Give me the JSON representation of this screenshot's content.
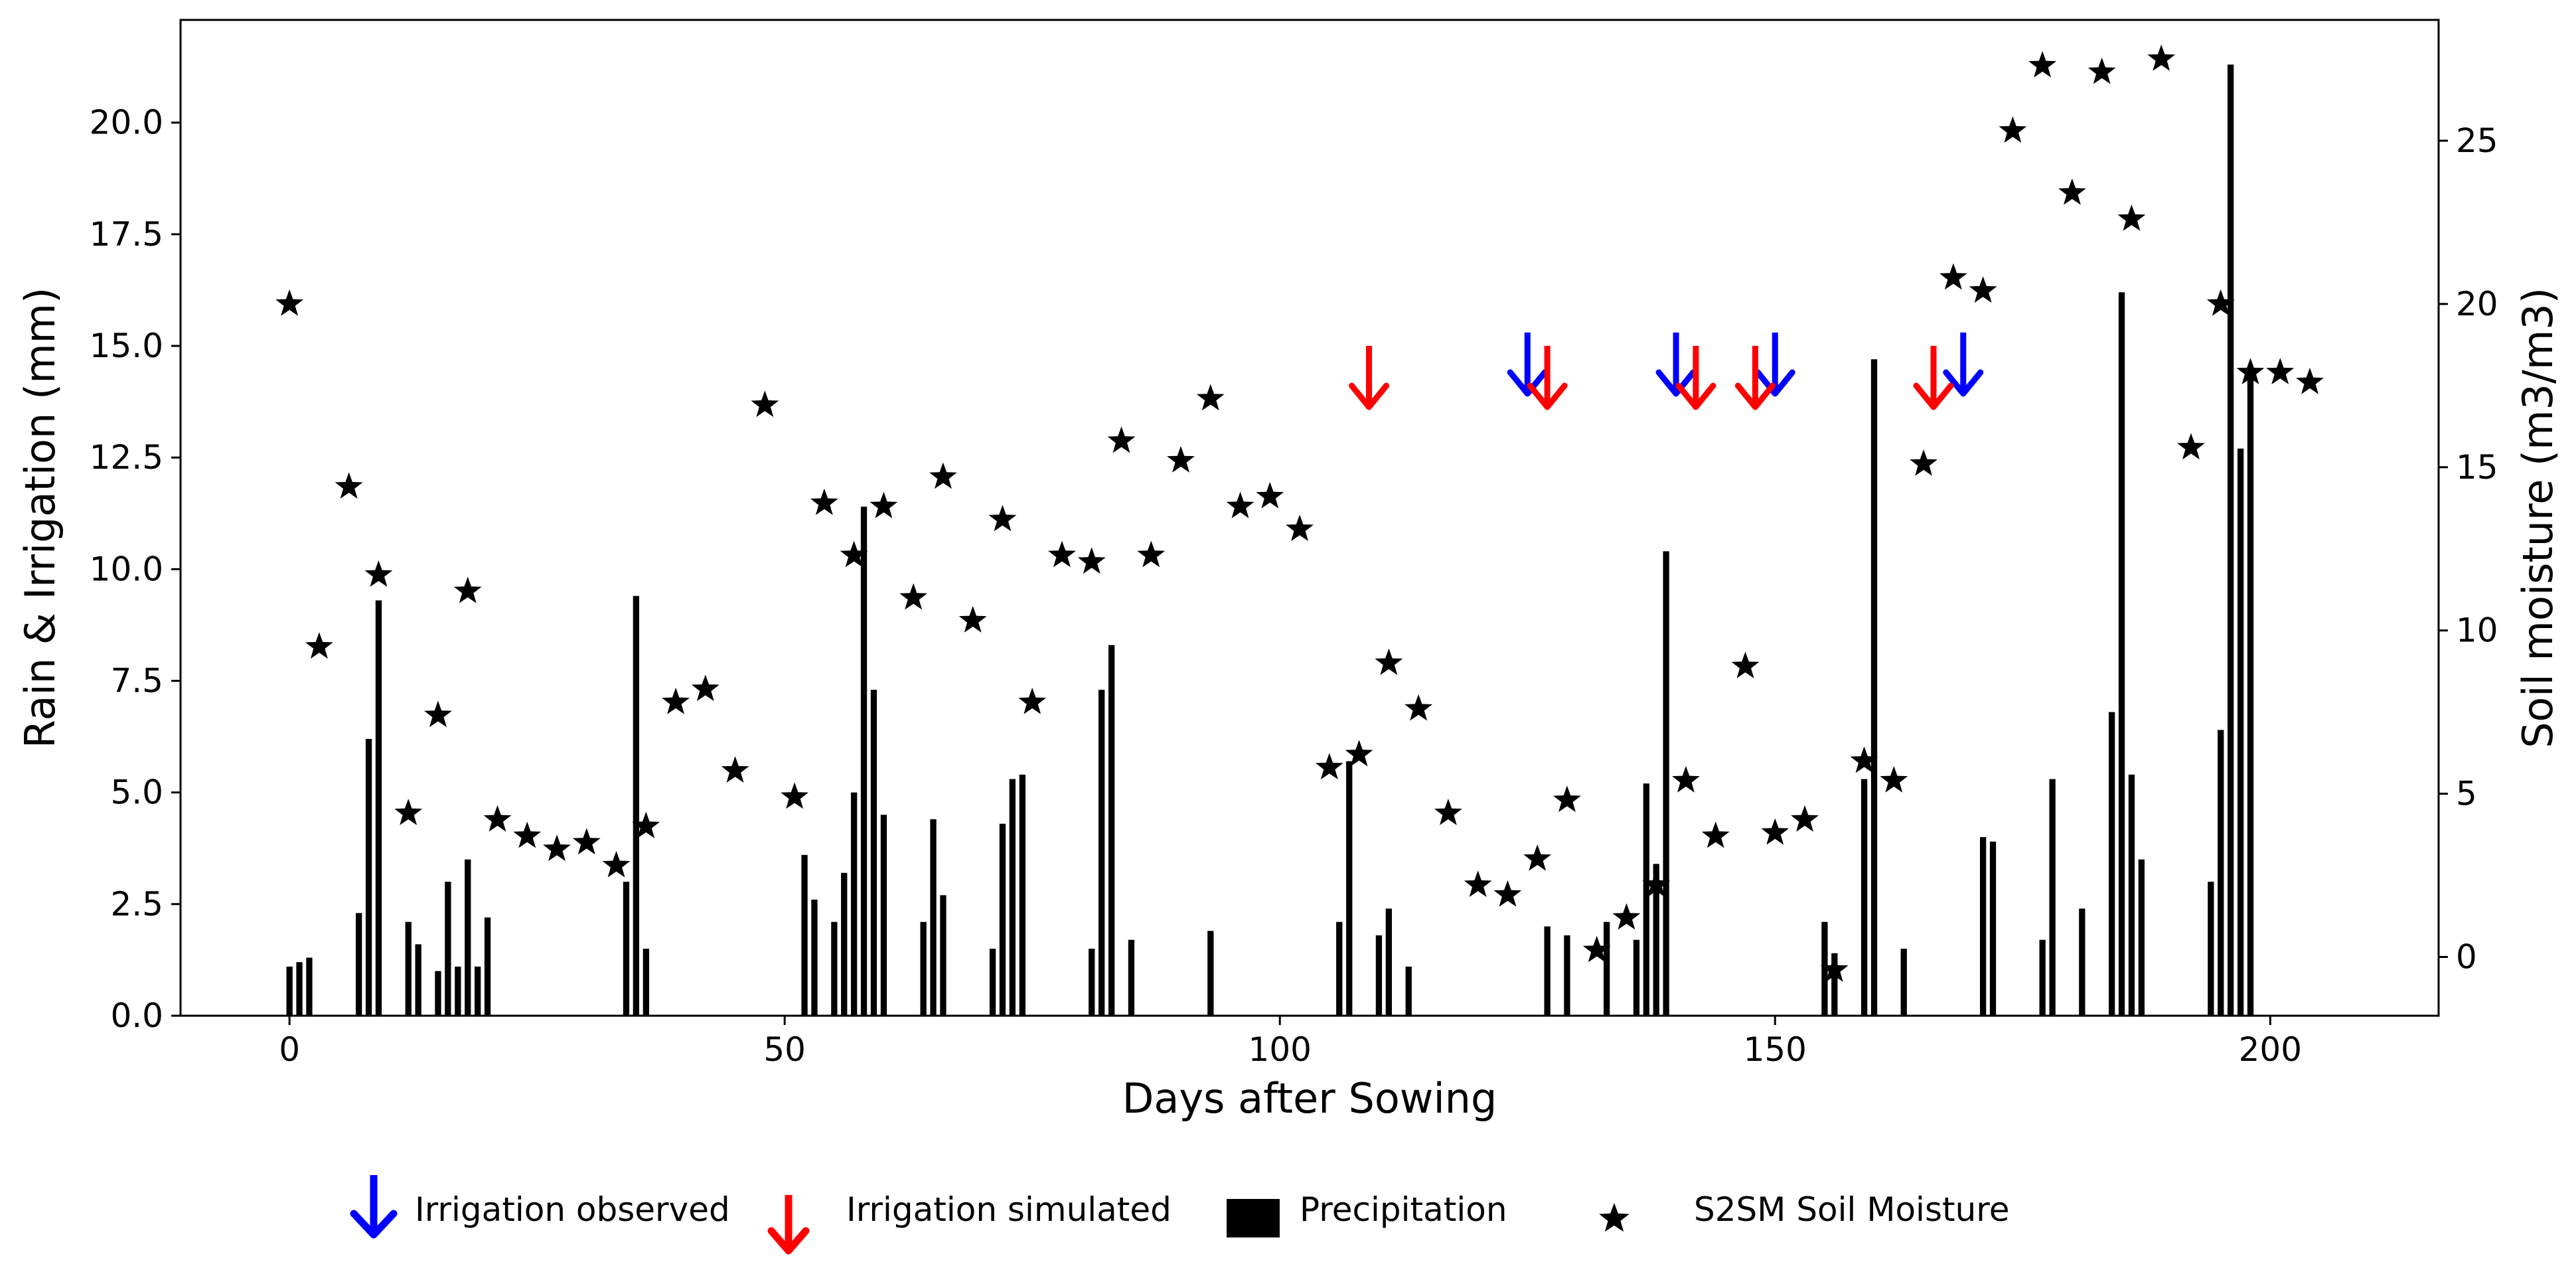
{
  "chart_data": {
    "type": "bar",
    "xlabel": "Days after Sowing",
    "ylabel_left": "Rain & Irrigation (mm)",
    "ylabel_right": "Soil moisture (m3/m3)",
    "xlim": [
      -11,
      217
    ],
    "ylim_left": [
      0,
      22.3
    ],
    "ylim_right": [
      -1.8,
      28.7
    ],
    "x_ticks": [
      0,
      50,
      100,
      150,
      200
    ],
    "x_tick_labels": [
      "0",
      "50",
      "100",
      "150",
      "200"
    ],
    "y_left_ticks": [
      0,
      2.5,
      5,
      7.5,
      10,
      12.5,
      15,
      17.5,
      20
    ],
    "y_left_tick_labels": [
      "0.0",
      "2.5",
      "5.0",
      "7.5",
      "10.0",
      "12.5",
      "15.0",
      "17.5",
      "20.0"
    ],
    "y_right_ticks": [
      0,
      5,
      10,
      15,
      20,
      25
    ],
    "y_right_tick_labels": [
      "0",
      "5",
      "10",
      "15",
      "20",
      "25"
    ],
    "grid": false,
    "legend_position": "bottom",
    "colors": {
      "precipitation": "#000000",
      "soil_moisture": "#000000",
      "irrigation_observed": "#0000ff",
      "irrigation_simulated": "#ff0000"
    },
    "legend": [
      {
        "key": "irrigation_observed",
        "label": "Irrigation observed"
      },
      {
        "key": "irrigation_simulated",
        "label": "Irrigation simulated"
      },
      {
        "key": "precipitation",
        "label": "Precipitation"
      },
      {
        "key": "soil_moisture",
        "label": "S2SM Soil Moisture"
      }
    ],
    "precipitation": [
      [
        0,
        1.1
      ],
      [
        1,
        1.2
      ],
      [
        2,
        1.3
      ],
      [
        7,
        2.3
      ],
      [
        8,
        6.2
      ],
      [
        9,
        9.3
      ],
      [
        12,
        2.1
      ],
      [
        13,
        1.6
      ],
      [
        15,
        1.0
      ],
      [
        16,
        3.0
      ],
      [
        17,
        1.1
      ],
      [
        18,
        3.5
      ],
      [
        19,
        1.1
      ],
      [
        20,
        2.2
      ],
      [
        34,
        3.0
      ],
      [
        35,
        9.4
      ],
      [
        36,
        1.5
      ],
      [
        52,
        3.6
      ],
      [
        53,
        2.6
      ],
      [
        55,
        2.1
      ],
      [
        56,
        3.2
      ],
      [
        57,
        5.0
      ],
      [
        58,
        11.4
      ],
      [
        59,
        7.3
      ],
      [
        60,
        4.5
      ],
      [
        64,
        2.1
      ],
      [
        65,
        4.4
      ],
      [
        66,
        2.7
      ],
      [
        71,
        1.5
      ],
      [
        72,
        4.3
      ],
      [
        73,
        5.3
      ],
      [
        74,
        5.4
      ],
      [
        81,
        1.5
      ],
      [
        82,
        7.3
      ],
      [
        83,
        8.3
      ],
      [
        85,
        1.7
      ],
      [
        93,
        1.9
      ],
      [
        106,
        2.1
      ],
      [
        107,
        5.7
      ],
      [
        110,
        1.8
      ],
      [
        111,
        2.4
      ],
      [
        113,
        1.1
      ],
      [
        127,
        2.0
      ],
      [
        129,
        1.8
      ],
      [
        133,
        2.1
      ],
      [
        136,
        1.7
      ],
      [
        137,
        5.2
      ],
      [
        138,
        3.4
      ],
      [
        139,
        10.4
      ],
      [
        155,
        2.1
      ],
      [
        156,
        1.4
      ],
      [
        159,
        5.3
      ],
      [
        160,
        14.7
      ],
      [
        163,
        1.5
      ],
      [
        171,
        4.0
      ],
      [
        172,
        3.9
      ],
      [
        177,
        1.7
      ],
      [
        178,
        5.3
      ],
      [
        181,
        2.4
      ],
      [
        184,
        6.8
      ],
      [
        185,
        16.2
      ],
      [
        186,
        5.4
      ],
      [
        187,
        3.5
      ],
      [
        194,
        3.0
      ],
      [
        195,
        6.4
      ],
      [
        196,
        21.3
      ],
      [
        197,
        12.7
      ],
      [
        198,
        14.4
      ]
    ],
    "soil_moisture": [
      [
        0,
        20.0
      ],
      [
        3,
        9.5
      ],
      [
        6,
        14.4
      ],
      [
        9,
        11.7
      ],
      [
        12,
        4.4
      ],
      [
        15,
        7.4
      ],
      [
        18,
        11.2
      ],
      [
        21,
        4.2
      ],
      [
        24,
        3.7
      ],
      [
        27,
        3.3
      ],
      [
        30,
        3.5
      ],
      [
        33,
        2.8
      ],
      [
        36,
        4.0
      ],
      [
        39,
        7.8
      ],
      [
        42,
        8.2
      ],
      [
        45,
        5.7
      ],
      [
        48,
        16.9
      ],
      [
        51,
        4.9
      ],
      [
        54,
        13.9
      ],
      [
        57,
        12.3
      ],
      [
        60,
        13.8
      ],
      [
        63,
        11.0
      ],
      [
        66,
        14.7
      ],
      [
        69,
        10.3
      ],
      [
        72,
        13.4
      ],
      [
        75,
        7.8
      ],
      [
        78,
        12.3
      ],
      [
        81,
        12.1
      ],
      [
        84,
        15.8
      ],
      [
        87,
        12.3
      ],
      [
        90,
        15.2
      ],
      [
        93,
        17.1
      ],
      [
        96,
        13.8
      ],
      [
        99,
        14.1
      ],
      [
        102,
        13.1
      ],
      [
        105,
        5.8
      ],
      [
        108,
        6.2
      ],
      [
        111,
        9.0
      ],
      [
        114,
        7.6
      ],
      [
        117,
        4.4
      ],
      [
        120,
        2.2
      ],
      [
        123,
        1.9
      ],
      [
        126,
        3.0
      ],
      [
        129,
        4.8
      ],
      [
        132,
        0.2
      ],
      [
        135,
        1.2
      ],
      [
        138,
        2.2
      ],
      [
        141,
        5.4
      ],
      [
        144,
        3.7
      ],
      [
        147,
        8.9
      ],
      [
        150,
        3.8
      ],
      [
        153,
        4.2
      ],
      [
        156,
        -0.4
      ],
      [
        159,
        6.0
      ],
      [
        162,
        5.4
      ],
      [
        165,
        15.1
      ],
      [
        168,
        20.8
      ],
      [
        171,
        20.4
      ],
      [
        174,
        25.3
      ],
      [
        177,
        27.3
      ],
      [
        180,
        23.4
      ],
      [
        183,
        27.1
      ],
      [
        186,
        22.6
      ],
      [
        189,
        27.5
      ],
      [
        192,
        15.6
      ],
      [
        195,
        20.0
      ],
      [
        198,
        17.9
      ],
      [
        201,
        17.9
      ],
      [
        204,
        17.6
      ]
    ],
    "irrigation_observed": [
      {
        "day": 125,
        "value": 15.3
      },
      {
        "day": 140,
        "value": 15.3
      },
      {
        "day": 150,
        "value": 15.3
      },
      {
        "day": 169,
        "value": 15.3
      }
    ],
    "irrigation_simulated": [
      {
        "day": 109,
        "value": 15.0
      },
      {
        "day": 127,
        "value": 15.0
      },
      {
        "day": 142,
        "value": 15.0
      },
      {
        "day": 148,
        "value": 15.0
      },
      {
        "day": 166,
        "value": 15.0
      }
    ]
  }
}
